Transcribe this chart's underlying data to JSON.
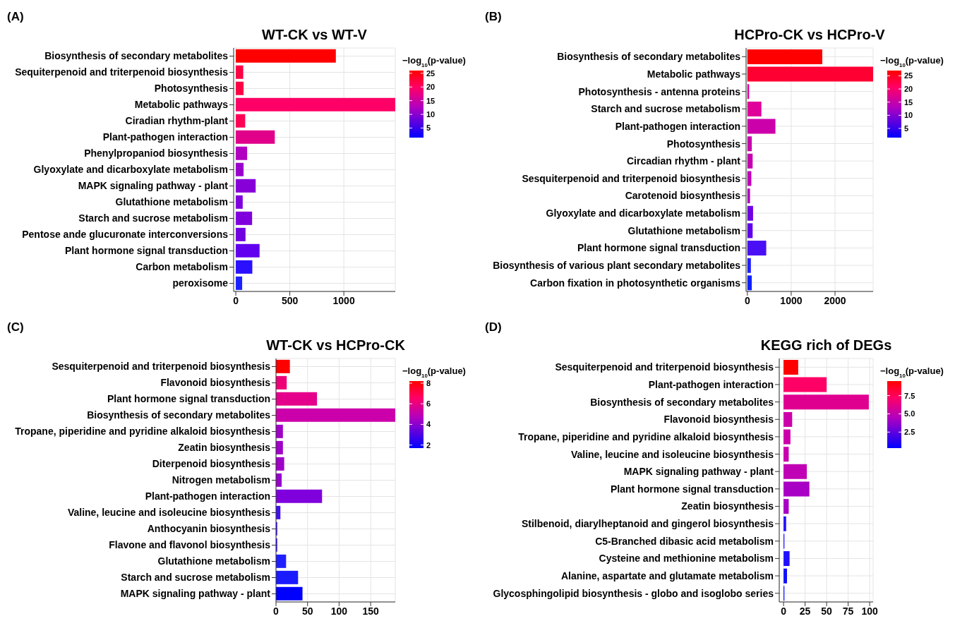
{
  "chart_data": [
    {
      "type": "bar",
      "orientation": "horizontal",
      "title": "WT-CK vs WT-V",
      "annotations": [
        "(A)"
      ],
      "categories": [
        "Biosynthesis of secondary metabolites",
        "Sequiterpenoid and triterpenoid biosynthesis",
        "Photosynthesis",
        "Metabolic pathways",
        "Ciradian rhythm-plant",
        "Plant-pathogen interaction",
        "Phenylpropaniod biosynthesis",
        "Glyoxylate and dicarboxylate metabolism",
        "MAPK signaling pathway - plant",
        "Glutathione metabolism",
        "Starch and sucrose metabolism",
        "Pentose ande glucuronate interconversions",
        "Plant hormone signal transduction",
        "Carbon metabolism",
        "peroxisome"
      ],
      "values": [
        926,
        69,
        72,
        1476,
        87,
        361,
        105,
        72,
        184,
        64,
        151,
        90,
        220,
        153,
        59
      ],
      "colors": [
        "#ff0000",
        "#ff0044",
        "#ff0044",
        "#ff0066",
        "#ff0055",
        "#e0008a",
        "#b000c0",
        "#9a00cc",
        "#8800d8",
        "#8000dd",
        "#8000dd",
        "#7000e0",
        "#6000ee",
        "#2a10ff",
        "#1a20ff"
      ],
      "xlim": [
        -20,
        1476
      ],
      "xticks": [
        0,
        500,
        1000
      ],
      "grid": true,
      "clabel": "−log$_{10}$(p-value)",
      "clim": [
        1.5,
        26
      ],
      "cticks": [
        5,
        10,
        15,
        20,
        25
      ]
    },
    {
      "type": "bar",
      "orientation": "horizontal",
      "title": "HCPro-CK vs HCPro-V",
      "annotations": [
        "(B)"
      ],
      "categories": [
        "Biosynthesis of secondary metabolites",
        "Metabolic pathways",
        "Photosynthesis - antenna proteins",
        "Starch and sucrose metabolism",
        "Plant-pathogen interaction",
        "Photosynthesis",
        "Circadian rhythm - plant",
        "Sesquiterpenoid and triterpenoid biosynthesis",
        "Carotenoid biosynthesis",
        "Glyoxylate and dicarboxylate metabolism",
        "Glutathione metabolism",
        "Plant hormone signal transduction",
        "Biosynthesis of various plant secondary metabolites",
        "Carbon fixation in photosynthetic organisms"
      ],
      "values": [
        1710,
        2870,
        40,
        320,
        640,
        100,
        120,
        90,
        60,
        130,
        120,
        430,
        80,
        100
      ],
      "colors": [
        "#ff0000",
        "#ff0033",
        "#e0009a",
        "#e0009a",
        "#cc00aa",
        "#c800ae",
        "#c400b0",
        "#be00b8",
        "#b000c0",
        "#7000e0",
        "#6000ea",
        "#4a10f5",
        "#2020ff",
        "#1020ff"
      ],
      "xlim": [
        -30,
        2870
      ],
      "xticks": [
        0,
        1000,
        2000
      ],
      "grid": true,
      "clabel": "−log$_{10}$(p-value)",
      "clim": [
        1.5,
        27
      ],
      "cticks": [
        5,
        10,
        15,
        20,
        25
      ]
    },
    {
      "type": "bar",
      "orientation": "horizontal",
      "title": "WT-CK vs HCPro-CK",
      "annotations": [
        "(C)"
      ],
      "categories": [
        "Sesquiterpenoid and triterpenoid biosynthesis",
        "Flavonoid biosynthesis",
        "Plant hormone signal transduction",
        "Biosynthesis of secondary metabolites",
        "Tropane, piperidine and pyridine alkaloid biosynthesis",
        "Zeatin biosynthesis",
        "Diterpenoid biosynthesis",
        "Nitrogen metabolism",
        "Plant-pathogen interaction",
        "Valine, leucine and isoleucine biosynthesis",
        "Anthocyanin biosynthesis",
        "Flavone and flavonol biosynthesis",
        "Glutathione metabolism",
        "Starch and sucrose metabolism",
        "MAPK signaling pathway - plant"
      ],
      "values": [
        22,
        17,
        65,
        189,
        11,
        11,
        13,
        9,
        73,
        7,
        2,
        2,
        16,
        35,
        42
      ],
      "colors": [
        "#ff0000",
        "#ee0077",
        "#e4008a",
        "#cc00aa",
        "#a000c8",
        "#a000c8",
        "#a000c8",
        "#9800cc",
        "#8000dd",
        "#4010f5",
        "#3a10f8",
        "#3a10f8",
        "#2020ff",
        "#1a1aff",
        "#0000ff"
      ],
      "xlim": [
        0,
        189
      ],
      "xticks": [
        0,
        50,
        100,
        150
      ],
      "grid": true,
      "clabel": "−log$_{10}$(p-value)",
      "clim": [
        1.7,
        8.2
      ],
      "cticks": [
        2,
        4,
        6,
        8
      ]
    },
    {
      "type": "bar",
      "orientation": "horizontal",
      "title": "KEGG rich of DEGs",
      "annotations": [
        "(D)"
      ],
      "categories": [
        "Sesquiterpenoid and triterpenoid biosynthesis",
        "Plant-pathogen interaction",
        "Biosynthesis of secondary metabolites",
        "Flavonoid biosynthesis",
        "Tropane, piperidine and pyridine alkaloid biosynthesis",
        "Valine, leucine and isoleucine biosynthesis",
        "MAPK signaling pathway - plant",
        "Plant hormone signal transduction",
        "Zeatin biosynthesis",
        "Stilbenoid, diarylheptanoid and gingerol biosynthesis",
        "C5-Branched dibasic acid metabolism",
        "Cysteine and methionine metabolism",
        "Alanine, aspartate and glutamate metabolism",
        "Glycosphingolipid biosynthesis - globo and isoglobo series"
      ],
      "values": [
        17,
        50,
        99,
        10,
        8,
        6,
        27,
        30,
        6,
        3,
        1,
        7,
        4,
        1
      ],
      "colors": [
        "#ff0000",
        "#ff0066",
        "#e00090",
        "#cc00aa",
        "#cc00aa",
        "#c800ae",
        "#c000b4",
        "#a800c4",
        "#a800c4",
        "#2010ff",
        "#2010ff",
        "#2010ff",
        "#1010ff",
        "#1010ff"
      ],
      "xlim": [
        -5,
        104
      ],
      "xticks": [
        0,
        25,
        50,
        75,
        100
      ],
      "grid": true,
      "clabel": "−log$_{10}$(p-value)",
      "clim": [
        0.3,
        9.5
      ],
      "cticks": [
        {
          "value": 2.5,
          "label": "2.5"
        },
        {
          "value": 5,
          "label": "5.0"
        },
        {
          "value": 7.5,
          "label": "7.5"
        }
      ]
    }
  ]
}
